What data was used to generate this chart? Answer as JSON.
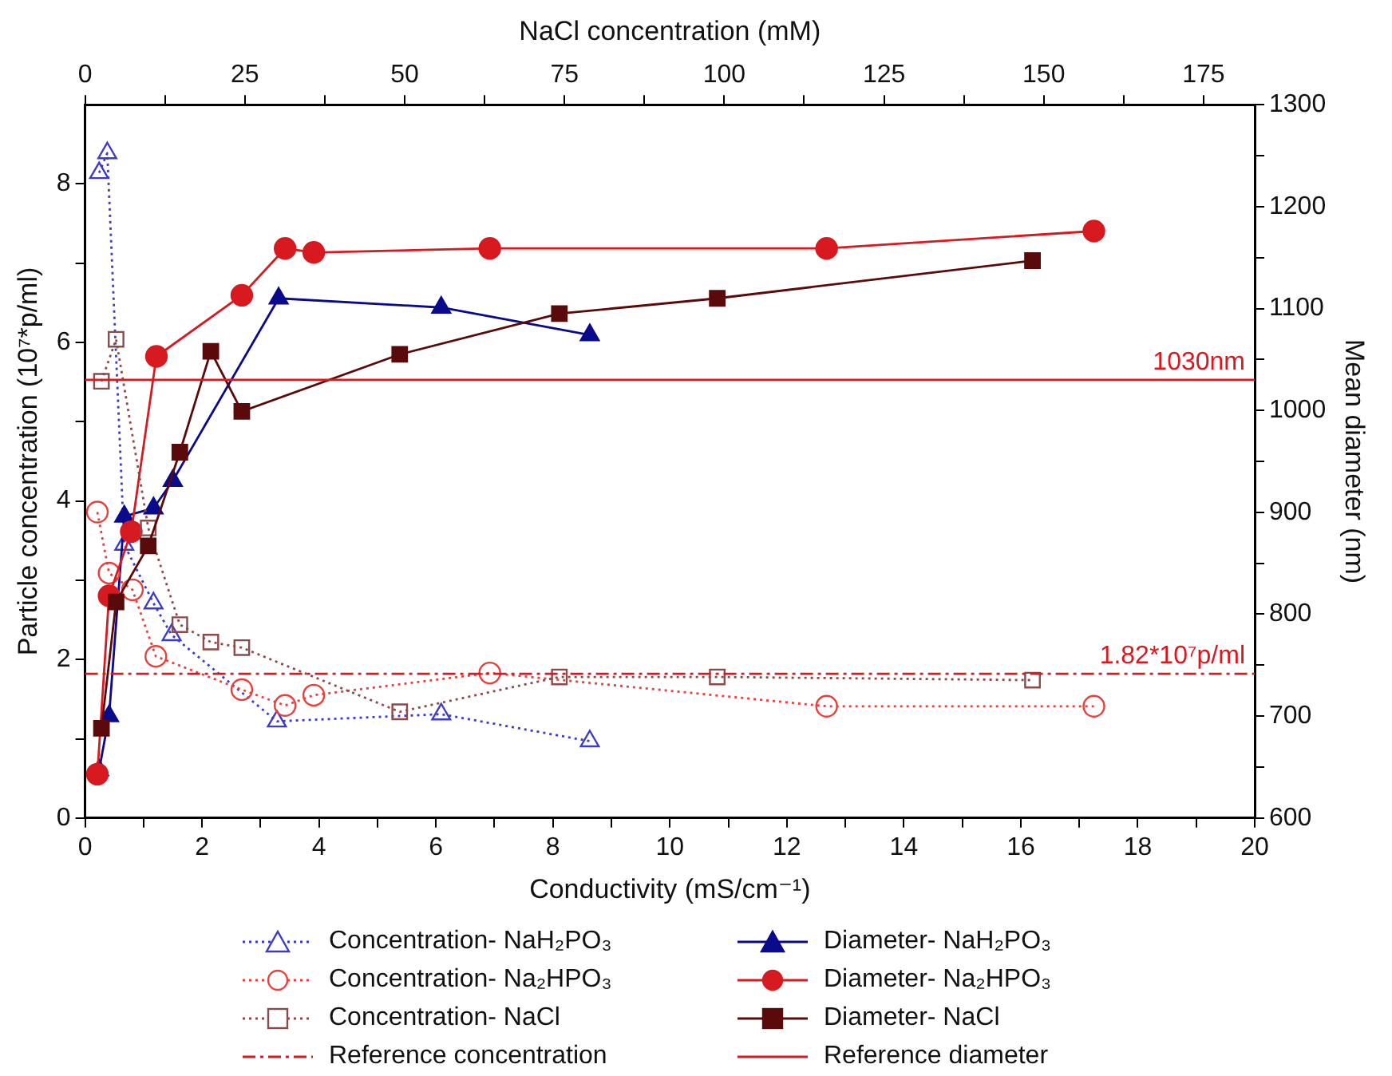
{
  "chart_data": {
    "type": "line",
    "xlabel": "Conductivity (mS/cm⁻¹)",
    "ylabel": "Particle concentration (10⁷*p/ml)",
    "y2label": "Mean diameter (nm)",
    "x2label": "NaCl concentration (mM)",
    "xlim": [
      0,
      20
    ],
    "xticks": [
      0,
      {
        "value": 1,
        "label": null
      },
      2,
      {
        "value": 3,
        "label": null
      },
      4,
      {
        "value": 5,
        "label": null
      },
      6,
      {
        "value": 7,
        "label": null
      },
      8,
      {
        "value": 9,
        "label": null
      },
      10,
      {
        "value": 11,
        "label": null
      },
      12,
      {
        "value": 13,
        "label": null
      },
      14,
      {
        "value": 15,
        "label": null
      },
      16,
      {
        "value": 17,
        "label": null
      },
      18,
      {
        "value": 19,
        "label": null
      },
      20
    ],
    "ylim": [
      0,
      9
    ],
    "yticks": [
      0,
      {
        "value": 1,
        "label": null
      },
      2,
      {
        "value": 3,
        "label": null
      },
      4,
      {
        "value": 5,
        "label": null
      },
      6,
      {
        "value": 7,
        "label": null
      },
      8
    ],
    "y2lim": [
      600,
      1300
    ],
    "y2ticks": [
      600,
      {
        "value": 650,
        "label": null
      },
      700,
      {
        "value": 750,
        "label": null
      },
      800,
      {
        "value": 850,
        "label": null
      },
      900,
      {
        "value": 950,
        "label": null
      },
      1000,
      {
        "value": 1050,
        "label": null
      },
      1100,
      {
        "value": 1150,
        "label": null
      },
      1200,
      {
        "value": 1250,
        "label": null
      },
      1300
    ],
    "x2lim": [
      0,
      183
    ],
    "x2ticks": [
      0,
      {
        "value": 12.5,
        "label": null
      },
      25,
      {
        "value": 37.5,
        "label": null
      },
      50,
      {
        "value": 62.5,
        "label": null
      },
      75,
      {
        "value": 87.5,
        "label": null
      },
      100,
      {
        "value": 112.5,
        "label": null
      },
      125,
      {
        "value": 137.5,
        "label": null
      },
      150,
      {
        "value": 162.5,
        "label": null
      },
      175
    ],
    "grid": false,
    "legend": "bottom",
    "series": [
      {
        "name": "Concentration- NaH₂PO₃",
        "axis": "y",
        "marker": "triangle",
        "line_style": "dotted",
        "color": "#3c3cc8",
        "x": [
          0.24,
          0.38,
          0.67,
          1.17,
          1.48,
          3.28,
          6.09,
          8.63
        ],
        "values": [
          8.14,
          8.39,
          3.45,
          2.71,
          2.31,
          1.22,
          1.31,
          0.97
        ]
      },
      {
        "name": "Diameter- NaH₂PO₃",
        "axis": "y2",
        "marker": "triangle",
        "line_style": "solid",
        "color": "#0a0a8c",
        "x": [
          0.24,
          0.41,
          0.67,
          1.17,
          1.5,
          3.31,
          6.09,
          8.63
        ],
        "values": [
          647,
          700,
          896,
          904,
          931,
          1110,
          1101,
          1074
        ]
      },
      {
        "name": "Concentration- Na₂HPO₃",
        "axis": "y",
        "marker": "circle",
        "line_style": "dotted",
        "color": "#e8403c",
        "x": [
          0.21,
          0.41,
          0.81,
          1.21,
          2.68,
          3.42,
          3.91,
          6.92,
          12.68,
          17.25
        ],
        "values": [
          3.86,
          3.09,
          2.88,
          2.04,
          1.62,
          1.42,
          1.55,
          1.83,
          1.41,
          1.41
        ]
      },
      {
        "name": "Diameter- Na₂HPO₃",
        "axis": "y2",
        "marker": "circle",
        "line_style": "solid",
        "color": "#d71920",
        "x": [
          0.21,
          0.41,
          0.79,
          1.22,
          2.68,
          3.42,
          3.91,
          6.92,
          12.68,
          17.25
        ],
        "values": [
          643,
          818,
          881,
          1053,
          1113,
          1159,
          1155,
          1159,
          1159,
          1176
        ]
      },
      {
        "name": "Concentration- NaCl",
        "axis": "y",
        "marker": "square",
        "line_style": "dotted",
        "color": "#8c4a4a",
        "x": [
          0.28,
          0.53,
          1.08,
          1.62,
          2.15,
          2.68,
          5.38,
          8.11,
          10.81,
          16.2
        ],
        "values": [
          5.51,
          6.04,
          3.66,
          2.44,
          2.22,
          2.15,
          1.34,
          1.78,
          1.78,
          1.74
        ]
      },
      {
        "name": "Diameter- NaCl",
        "axis": "y2",
        "marker": "square",
        "line_style": "solid",
        "color": "#5a0a0a",
        "x": [
          0.28,
          0.53,
          1.08,
          1.62,
          2.15,
          2.68,
          5.38,
          8.11,
          10.81,
          16.2
        ],
        "values": [
          688,
          812,
          867,
          959,
          1058,
          999,
          1055,
          1095,
          1110,
          1147
        ]
      }
    ],
    "ref_lines": [
      {
        "axis": "y",
        "value": 1.82,
        "label": "Reference concentration",
        "color": "#d71920",
        "line_style": "dashed"
      },
      {
        "axis": "y2",
        "value": 1030,
        "label": "Reference diameter",
        "color": "#d71920",
        "line_style": "solid"
      }
    ],
    "annotations": [
      "1.82*10⁷p/ml",
      "1030nm"
    ]
  }
}
